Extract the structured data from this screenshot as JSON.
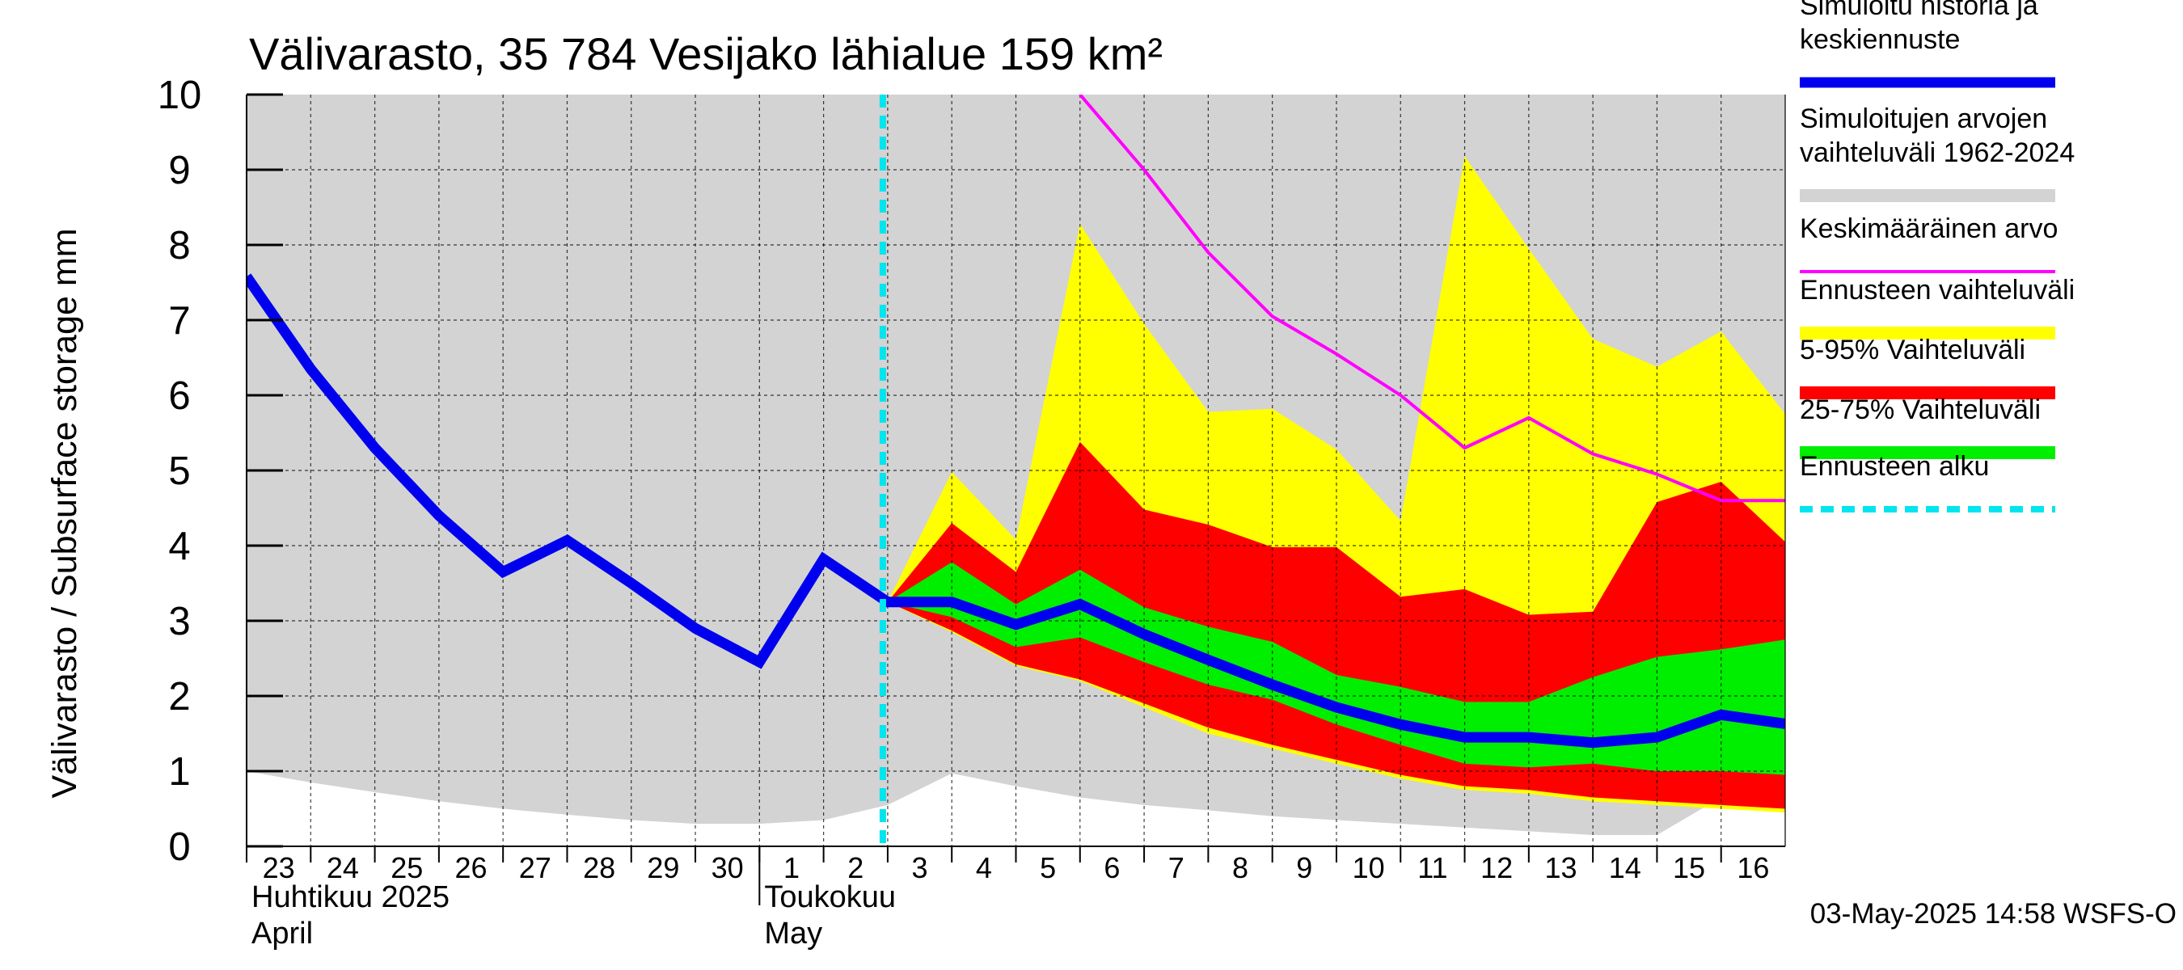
{
  "chart_data": {
    "type": "area",
    "title": "Välivarasto, 35 784 Vesijako lähialue 159 km²",
    "ylabel": "Välivarasto / Subsurface storage  mm",
    "ylim": [
      0,
      10
    ],
    "yticks": [
      "0",
      "1",
      "2",
      "3",
      "4",
      "5",
      "6",
      "7",
      "8",
      "9",
      "10"
    ],
    "grid": true,
    "legend_position": "right",
    "x_day_labels": [
      "23",
      "24",
      "25",
      "26",
      "27",
      "28",
      "29",
      "30",
      "1",
      "2",
      "3",
      "4",
      "5",
      "6",
      "7",
      "8",
      "9",
      "10",
      "11",
      "12",
      "13",
      "14",
      "15",
      "16"
    ],
    "x_month_labels": [
      {
        "fi": "Huhtikuu  2025",
        "en": "April"
      },
      {
        "fi": "Toukokuu",
        "en": "May"
      }
    ],
    "forecast_start_date": "2025-05-03",
    "dates": [
      "2025-04-23",
      "2025-04-24",
      "2025-04-25",
      "2025-04-26",
      "2025-04-27",
      "2025-04-28",
      "2025-04-29",
      "2025-04-30",
      "2025-05-01",
      "2025-05-02",
      "2025-05-03",
      "2025-05-04",
      "2025-05-05",
      "2025-05-06",
      "2025-05-07",
      "2025-05-08",
      "2025-05-09",
      "2025-05-10",
      "2025-05-11",
      "2025-05-12",
      "2025-05-13",
      "2025-05-14",
      "2025-05-15",
      "2025-05-16",
      "2025-05-17"
    ],
    "series": [
      {
        "name": "Simuloitujen arvojen vaihteluväli 1962-2024",
        "kind": "band",
        "color": "#d3d3d3",
        "lower": [
          1.0,
          0.85,
          0.72,
          0.6,
          0.5,
          0.42,
          0.35,
          0.3,
          0.3,
          0.35,
          0.55,
          0.97,
          0.8,
          0.65,
          0.55,
          0.48,
          0.4,
          0.35,
          0.3,
          0.25,
          0.2,
          0.15,
          0.15,
          0.65,
          0.55
        ],
        "upper": [
          10,
          10,
          10,
          10,
          10,
          10,
          10,
          10,
          10,
          10,
          10,
          10,
          10,
          10,
          10,
          10,
          10,
          10,
          10,
          10,
          10,
          10,
          10,
          10,
          10
        ]
      },
      {
        "name": "Ennusteen vaihteluväli",
        "kind": "band",
        "color": "#ffff00",
        "x": [
          "2025-05-03",
          "2025-05-04",
          "2025-05-05",
          "2025-05-06",
          "2025-05-07",
          "2025-05-08",
          "2025-05-09",
          "2025-05-10",
          "2025-05-11",
          "2025-05-12",
          "2025-05-13",
          "2025-05-14",
          "2025-05-15",
          "2025-05-16",
          "2025-05-17"
        ],
        "lower": [
          3.25,
          2.85,
          2.4,
          2.2,
          1.85,
          1.5,
          1.3,
          1.1,
          0.9,
          0.75,
          0.7,
          0.6,
          0.55,
          0.5,
          0.45
        ],
        "upper": [
          3.25,
          4.98,
          4.08,
          8.28,
          6.95,
          5.78,
          5.82,
          5.28,
          4.33,
          9.18,
          7.95,
          6.75,
          6.38,
          6.85,
          5.75
        ]
      },
      {
        "name": "5-95% Vaihteluväli",
        "kind": "band",
        "color": "#ff0000",
        "x": [
          "2025-05-03",
          "2025-05-04",
          "2025-05-05",
          "2025-05-06",
          "2025-05-07",
          "2025-05-08",
          "2025-05-09",
          "2025-05-10",
          "2025-05-11",
          "2025-05-12",
          "2025-05-13",
          "2025-05-14",
          "2025-05-15",
          "2025-05-16",
          "2025-05-17"
        ],
        "lower": [
          3.25,
          2.87,
          2.42,
          2.22,
          1.9,
          1.58,
          1.35,
          1.15,
          0.95,
          0.8,
          0.75,
          0.65,
          0.6,
          0.55,
          0.5
        ],
        "upper": [
          3.25,
          4.3,
          3.65,
          5.38,
          4.48,
          4.28,
          3.98,
          3.98,
          3.32,
          3.42,
          3.08,
          3.12,
          4.58,
          4.85,
          4.05
        ]
      },
      {
        "name": "25-75% Vaihteluväli",
        "kind": "band",
        "color": "#00ee00",
        "x": [
          "2025-05-03",
          "2025-05-04",
          "2025-05-05",
          "2025-05-06",
          "2025-05-07",
          "2025-05-08",
          "2025-05-09",
          "2025-05-10",
          "2025-05-11",
          "2025-05-12",
          "2025-05-13",
          "2025-05-14",
          "2025-05-15",
          "2025-05-16",
          "2025-05-17"
        ],
        "lower": [
          3.25,
          3.05,
          2.65,
          2.78,
          2.45,
          2.15,
          1.95,
          1.62,
          1.35,
          1.1,
          1.05,
          1.1,
          1.0,
          1.0,
          0.95
        ],
        "upper": [
          3.25,
          3.78,
          3.22,
          3.68,
          3.18,
          2.92,
          2.72,
          2.28,
          2.12,
          1.92,
          1.92,
          2.25,
          2.52,
          2.62,
          2.75
        ]
      },
      {
        "name": "Simuloitu historia ja keskiennuste",
        "kind": "line",
        "color": "#0000ee",
        "values": [
          7.58,
          6.35,
          5.3,
          4.4,
          3.65,
          4.07,
          3.5,
          2.9,
          2.45,
          3.82,
          3.25,
          3.25,
          2.95,
          3.22,
          2.82,
          2.48,
          2.15,
          1.85,
          1.62,
          1.45,
          1.45,
          1.38,
          1.45,
          1.75,
          1.63
        ]
      },
      {
        "name": "Keskimääräinen arvo",
        "kind": "line",
        "color": "#ff00ff",
        "x": [
          "2025-05-06",
          "2025-05-07",
          "2025-05-08",
          "2025-05-09",
          "2025-05-10",
          "2025-05-11",
          "2025-05-12",
          "2025-05-13",
          "2025-05-14",
          "2025-05-15",
          "2025-05-16",
          "2025-05-17"
        ],
        "values": [
          10.0,
          9.0,
          7.9,
          7.05,
          6.55,
          6.0,
          5.3,
          5.7,
          5.22,
          4.95,
          4.6,
          4.6
        ]
      }
    ],
    "legend": [
      {
        "label": "Simuloitu historia ja keskiennuste",
        "lines": [
          "Simuloitu historia ja",
          "keskiennuste"
        ],
        "color": "#0000ee",
        "style": "thick-line"
      },
      {
        "label": "Simuloitujen arvojen vaihteluväli 1962-2024",
        "lines": [
          "Simuloitujen arvojen",
          "vaihteluväli 1962-2024"
        ],
        "color": "#d3d3d3",
        "style": "band"
      },
      {
        "label": "Keskimääräinen arvo",
        "lines": [
          "Keskimääräinen arvo"
        ],
        "color": "#ff00ff",
        "style": "thin-line"
      },
      {
        "label": "Ennusteen vaihteluväli",
        "lines": [
          "Ennusteen vaihteluväli"
        ],
        "color": "#ffff00",
        "style": "band"
      },
      {
        "label": "5-95% Vaihteluväli",
        "lines": [
          "5-95% Vaihteluväli"
        ],
        "color": "#ff0000",
        "style": "band"
      },
      {
        "label": "25-75% Vaihteluväli",
        "lines": [
          "25-75% Vaihteluväli"
        ],
        "color": "#00ee00",
        "style": "band"
      },
      {
        "label": "Ennusteen alku",
        "lines": [
          "Ennusteen alku"
        ],
        "color": "#00e5ee",
        "style": "dashed-line"
      }
    ],
    "footer": "03-May-2025 14:58 WSFS-O"
  }
}
